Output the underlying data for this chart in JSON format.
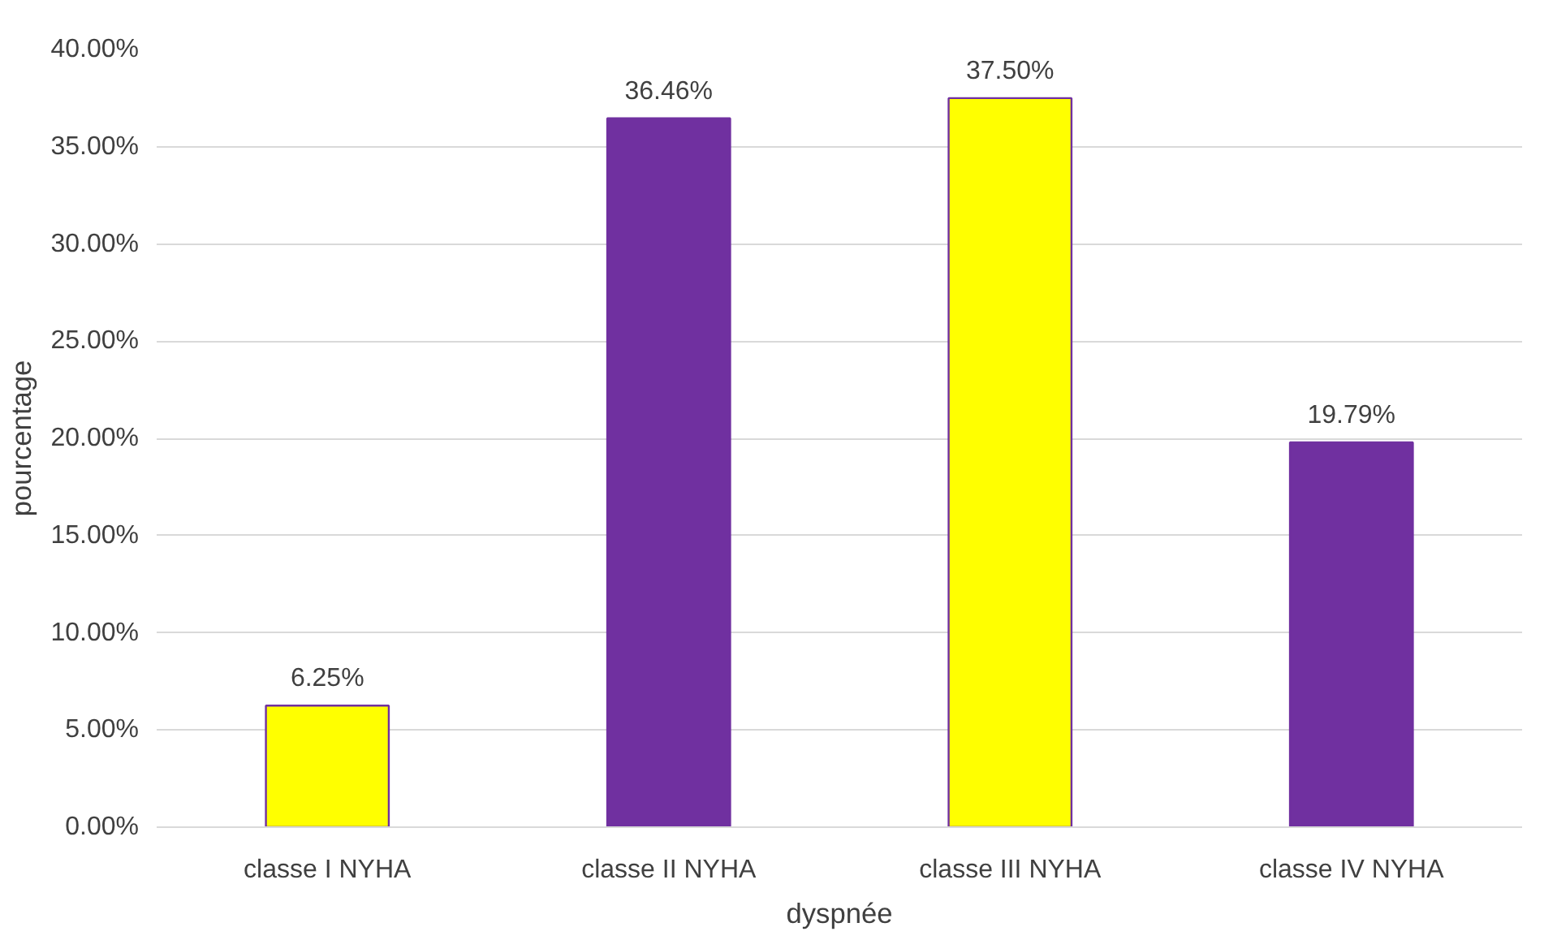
{
  "chart_data": {
    "type": "bar",
    "xlabel": "dyspnée",
    "ylabel": "pourcentage",
    "categories": [
      "classe I NYHA",
      "classe II NYHA",
      "classe III NYHA",
      "classe IV NYHA"
    ],
    "values": [
      6.25,
      36.46,
      37.5,
      19.79
    ],
    "colors": [
      "#ffff00",
      "#7030a0",
      "#ffff00",
      "#7030a0"
    ],
    "value_labels": [
      "6.25%",
      "36.46%",
      "37.50%",
      "19.79%"
    ],
    "ylim": [
      0,
      40
    ],
    "yticks": [
      {
        "value": 0,
        "label": "0.00%"
      },
      {
        "value": 5,
        "label": "5.00%"
      },
      {
        "value": 10,
        "label": "10.00%"
      },
      {
        "value": 15,
        "label": "15.00%"
      },
      {
        "value": 20,
        "label": "20.00%"
      },
      {
        "value": 25,
        "label": "25.00%"
      },
      {
        "value": 30,
        "label": "30.00%"
      },
      {
        "value": 35,
        "label": "35.00%"
      },
      {
        "value": 40,
        "label": "40.00%"
      }
    ],
    "grid": "y"
  }
}
